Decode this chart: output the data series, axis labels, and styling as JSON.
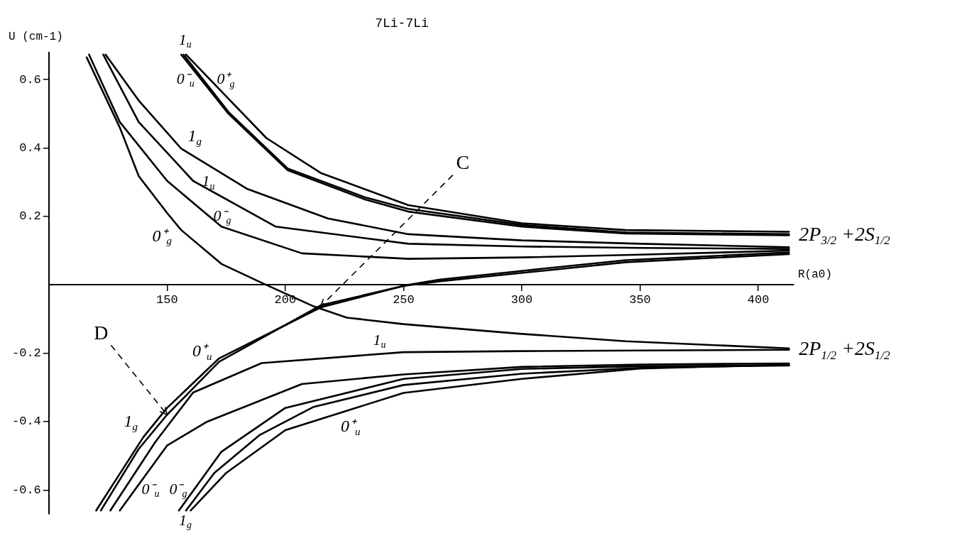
{
  "chart_data": {
    "type": "line",
    "title": "7Li-7Li",
    "xlabel": "R(a0)",
    "ylabel": "U (cm-1)",
    "xlim": [
      100,
      415
    ],
    "xticks": [
      150,
      200,
      250,
      300,
      350,
      400
    ],
    "ylim": [
      -0.67,
      0.68
    ],
    "yticks": [
      -0.6,
      -0.4,
      -0.2,
      0.2,
      0.4,
      0.6
    ],
    "series": [
      {
        "name": "0⁺$_{u}$",
        "color": "#000000",
        "x": [
          413,
          350,
          300,
          250,
          200,
          175,
          160
        ],
        "values": [
          -0.233,
          -0.245,
          -0.275,
          -0.316,
          -0.425,
          -0.55,
          -0.66
        ]
      },
      {
        "name": "1$_{g}$",
        "color": "#000000",
        "x": [
          413,
          350,
          300,
          250,
          212,
          189,
          170,
          158
        ],
        "values": [
          -0.235,
          -0.243,
          -0.26,
          -0.293,
          -0.357,
          -0.44,
          -0.55,
          -0.66
        ]
      },
      {
        "name": "0⁻$_{g}$",
        "color": "#000000",
        "x": [
          413,
          350,
          300,
          250,
          200,
          173,
          155
        ],
        "values": [
          -0.236,
          -0.238,
          -0.246,
          -0.275,
          -0.36,
          -0.488,
          -0.66
        ]
      },
      {
        "name": "0⁻$_{u}$",
        "color": "#000000",
        "x": [
          413,
          350,
          300,
          250,
          207,
          167,
          150,
          130
        ],
        "values": [
          -0.23,
          -0.233,
          -0.24,
          -0.262,
          -0.29,
          -0.4,
          -0.47,
          -0.66
        ]
      },
      {
        "name": "1$_{u}$",
        "color": "#000000",
        "x": [
          413,
          350,
          300,
          250,
          190,
          161,
          145,
          126
        ],
        "values": [
          -0.19,
          -0.192,
          -0.194,
          -0.197,
          -0.229,
          -0.315,
          -0.46,
          -0.66
        ]
      },
      {
        "name": "0⁺$_{u}$",
        "color": "#000000",
        "x": [
          413,
          344,
          299,
          265,
          252,
          215,
          172,
          150,
          138,
          122
        ],
        "values": [
          0.095,
          0.072,
          0.04,
          0.015,
          0,
          -0.06,
          -0.225,
          -0.38,
          -0.48,
          -0.66
        ]
      },
      {
        "name": "1$_{g}$",
        "color": "#000000",
        "x": [
          413,
          344,
          299,
          265,
          250,
          215,
          172,
          150,
          140,
          120
        ],
        "values": [
          0.09,
          0.066,
          0.034,
          0.01,
          -0.003,
          -0.066,
          -0.215,
          -0.36,
          -0.445,
          -0.66
        ]
      },
      {
        "name": "0⁺$_{g}$",
        "color": "#000000",
        "x": [
          413,
          344,
          299,
          250,
          226,
          212,
          190,
          173,
          156,
          150,
          138,
          130,
          116
        ],
        "values": [
          -0.186,
          -0.165,
          -0.143,
          -0.115,
          -0.096,
          -0.063,
          0.006,
          0.061,
          0.16,
          0.21,
          0.318,
          0.46,
          0.665
        ]
      },
      {
        "name": "0⁻$_{g}$",
        "color": "#000000",
        "x": [
          413,
          350,
          300,
          252,
          207,
          173,
          150,
          130,
          117
        ],
        "values": [
          0.1,
          0.088,
          0.08,
          0.076,
          0.092,
          0.17,
          0.304,
          0.476,
          0.673
        ]
      },
      {
        "name": "1$_{u}$",
        "color": "#000000",
        "x": [
          413,
          350,
          300,
          252,
          196,
          161,
          138,
          123
        ],
        "values": [
          0.105,
          0.108,
          0.112,
          0.12,
          0.17,
          0.304,
          0.476,
          0.673
        ]
      },
      {
        "name": "1$_{g}$",
        "color": "#000000",
        "x": [
          413,
          350,
          300,
          252,
          218,
          184,
          156,
          138,
          124
        ],
        "values": [
          0.11,
          0.12,
          0.13,
          0.148,
          0.194,
          0.28,
          0.398,
          0.539,
          0.673
        ]
      },
      {
        "name": "0⁻$_{u}$",
        "color": "#000000",
        "x": [
          413,
          344,
          300,
          252,
          234,
          201,
          176,
          156
        ],
        "values": [
          0.145,
          0.15,
          0.17,
          0.214,
          0.249,
          0.335,
          0.5,
          0.673
        ]
      },
      {
        "name": "1$_{u}$",
        "color": "#000000",
        "x": [
          413,
          344,
          300,
          252,
          234,
          201,
          176,
          157
        ],
        "values": [
          0.148,
          0.153,
          0.175,
          0.222,
          0.255,
          0.34,
          0.505,
          0.673
        ]
      },
      {
        "name": "0⁺$_{g}$",
        "color": "#000000",
        "x": [
          413,
          344,
          300,
          252,
          215,
          192,
          158
        ],
        "values": [
          0.155,
          0.16,
          0.18,
          0.233,
          0.327,
          0.429,
          0.673
        ]
      }
    ],
    "annotations": [
      {
        "text": "C",
        "x": 215,
        "y": -0.063
      },
      {
        "text": "D",
        "x": 150,
        "y": -0.38
      },
      "2P$_{1/2}$ +2S$_{1/2}$",
      "2P$_{3/2}$ +2S$_{1/2}$"
    ]
  }
}
